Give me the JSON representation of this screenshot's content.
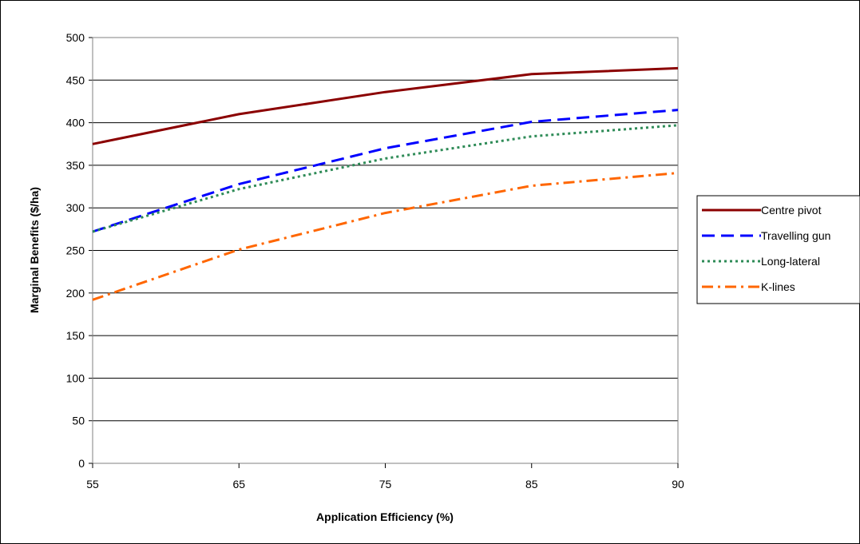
{
  "chart_data": {
    "type": "line",
    "xlabel": "Application Efficiency (%)",
    "ylabel": "Marginal Benefits ($/ha)",
    "categories": [
      "55",
      "65",
      "75",
      "85",
      "90"
    ],
    "ylim": [
      0,
      500
    ],
    "yticks": [
      0,
      50,
      100,
      150,
      200,
      250,
      300,
      350,
      400,
      450,
      500
    ],
    "grid": "horizontal",
    "legend_position": "right",
    "series": [
      {
        "name": "Centre pivot",
        "color": "#8B0000",
        "style": "solid",
        "values": [
          375,
          410,
          436,
          457,
          464
        ]
      },
      {
        "name": "Travelling gun",
        "color": "#0000FF",
        "style": "dashed",
        "values": [
          272,
          328,
          370,
          401,
          415
        ]
      },
      {
        "name": "Long-lateral",
        "color": "#2E8B57",
        "style": "dotted",
        "values": [
          272,
          322,
          358,
          384,
          397
        ]
      },
      {
        "name": "K-lines",
        "color": "#FF6600",
        "style": "dashdot",
        "values": [
          192,
          251,
          294,
          326,
          341
        ]
      }
    ]
  }
}
